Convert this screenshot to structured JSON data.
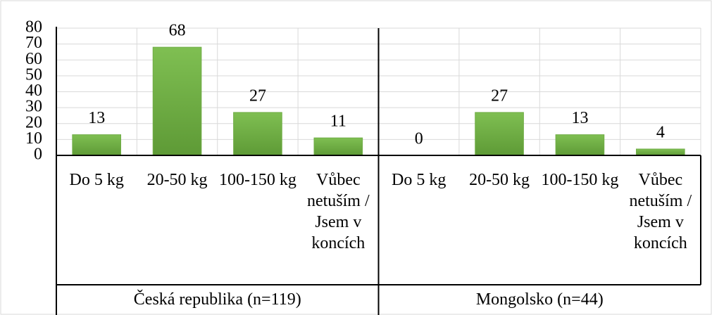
{
  "chart_data": {
    "type": "bar",
    "categories": [
      "Do 5 kg",
      "20-50 kg",
      "100-150 kg",
      "Vůbec netuším / Jsem v koncích",
      "Do 5 kg",
      "20-50 kg",
      "100-150 kg",
      "Vůbec netuším / Jsem v koncích"
    ],
    "groups": [
      "Česká republika (n=119)",
      "Mongolsko (n=44)"
    ],
    "values": [
      13,
      68,
      27,
      11,
      0,
      27,
      13,
      4
    ],
    "color": "#70ad47",
    "ylim": [
      0,
      80
    ],
    "yticks": [
      0,
      10,
      20,
      30,
      40,
      50,
      60,
      70,
      80
    ],
    "grid": true
  }
}
